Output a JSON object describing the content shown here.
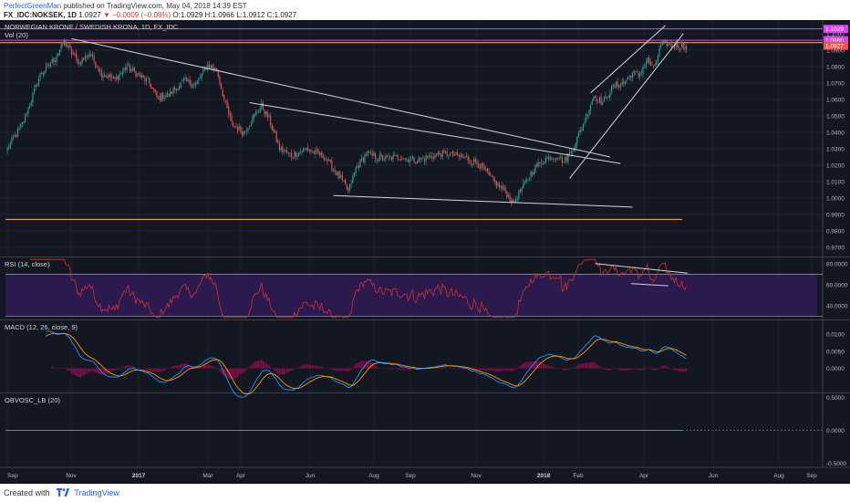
{
  "header": {
    "author": "PerfectGreenMan",
    "published": "published on TradingView.com, May 04, 2018 14:39 EST",
    "symbol": "FX_IDC:NOKSEK, 1D",
    "last": "1.0927",
    "change": "−0.0009 (−0.08%)",
    "ohlc": "O:1.0929 H:1.0966 L:1.0912 C:1.0927"
  },
  "footer": {
    "created_with": "Created with",
    "brand": "TradingView"
  },
  "colors": {
    "background": "#131722",
    "grid": "#262b38",
    "up_candle": "#26a69a",
    "down_candle": "#ef5350",
    "trendline": "#d1d4dc",
    "magenta_level": "#e040fb",
    "orange_level": "#ffb74d",
    "rsi_line": "#d32f2f",
    "rsi_band": "#2a1a4d",
    "macd_line": "#2196f3",
    "signal_line": "#ff9800",
    "histogram": "#880e4f",
    "obv_line": "#ef5350"
  },
  "chart_data": [
    {
      "type": "candlestick",
      "title": "NORWEGIAN KRONE / SWEDISH KRONA, 1D, FX_IDC",
      "subtitle": "Vol (20)",
      "x_ticks": [
        "Sep",
        "Nov",
        "2017",
        "Mar",
        "Apr",
        "Jun",
        "Aug",
        "Sep",
        "Nov",
        "2018",
        "Feb",
        "Apr",
        "Jun",
        "Aug",
        "Sep"
      ],
      "y_ticks": [
        "1.1000",
        "1.0900",
        "1.0800",
        "1.0700",
        "1.0600",
        "1.0500",
        "1.0400",
        "1.0300",
        "1.0200",
        "1.0100",
        "1.0000",
        "0.9900",
        "0.9800",
        "0.9700"
      ],
      "ylim": [
        0.965,
        1.1055
      ],
      "price_labels": [
        "1.1029",
        "1.0960",
        "1.0927"
      ],
      "close_path": [
        [
          0,
          1.03
        ],
        [
          10,
          1.045
        ],
        [
          22,
          1.075
        ],
        [
          32,
          1.085
        ],
        [
          38,
          1.095
        ],
        [
          48,
          1.082
        ],
        [
          55,
          1.088
        ],
        [
          63,
          1.076
        ],
        [
          72,
          1.072
        ],
        [
          80,
          1.08
        ],
        [
          95,
          1.07
        ],
        [
          100,
          1.061
        ],
        [
          108,
          1.063
        ],
        [
          118,
          1.071
        ],
        [
          126,
          1.069
        ],
        [
          134,
          1.081
        ],
        [
          140,
          1.078
        ],
        [
          145,
          1.06
        ],
        [
          150,
          1.045
        ],
        [
          158,
          1.04
        ],
        [
          165,
          1.05
        ],
        [
          170,
          1.056
        ],
        [
          175,
          1.048
        ],
        [
          182,
          1.03
        ],
        [
          190,
          1.026
        ],
        [
          200,
          1.03
        ],
        [
          212,
          1.025
        ],
        [
          222,
          1.013
        ],
        [
          228,
          1.004
        ],
        [
          233,
          1.018
        ],
        [
          240,
          1.027
        ],
        [
          250,
          1.024
        ],
        [
          262,
          1.025
        ],
        [
          275,
          1.023
        ],
        [
          290,
          1.027
        ],
        [
          305,
          1.025
        ],
        [
          315,
          1.021
        ],
        [
          325,
          1.01
        ],
        [
          333,
          1.004
        ],
        [
          338,
          0.997
        ],
        [
          345,
          1.007
        ],
        [
          352,
          1.018
        ],
        [
          360,
          1.024
        ],
        [
          368,
          1.026
        ],
        [
          372,
          1.022
        ],
        [
          378,
          1.03
        ],
        [
          385,
          1.045
        ],
        [
          392,
          1.062
        ],
        [
          398,
          1.058
        ],
        [
          405,
          1.068
        ],
        [
          412,
          1.07
        ],
        [
          418,
          1.076
        ],
        [
          422,
          1.075
        ],
        [
          428,
          1.084
        ],
        [
          432,
          1.078
        ],
        [
          437,
          1.093
        ],
        [
          441,
          1.094
        ],
        [
          444,
          1.0927
        ]
      ],
      "trendlines": [
        {
          "name": "descending resistance",
          "from": [
            43,
            1.097
          ],
          "to": [
            403,
            1.025
          ]
        },
        {
          "name": "wedge upper",
          "from": [
            162,
            1.058
          ],
          "to": [
            410,
            1.021
          ]
        },
        {
          "name": "wedge lower",
          "from": [
            218,
            1.0015
          ],
          "to": [
            418,
            0.9945
          ]
        },
        {
          "name": "channel upper",
          "from": [
            390,
            1.064
          ],
          "to": [
            440,
            1.105
          ]
        },
        {
          "name": "channel lower",
          "from": [
            376,
            1.012
          ],
          "to": [
            452,
            1.1
          ]
        }
      ],
      "levels": [
        {
          "value": 1.1029,
          "color": "magenta"
        },
        {
          "value": 1.096,
          "color": "magenta"
        },
        {
          "value": 1.0945,
          "color": "orange"
        },
        {
          "value": 0.987,
          "color": "orange"
        }
      ]
    },
    {
      "type": "line",
      "title": "RSI (14, close)",
      "y_ticks": [
        "80.0000",
        "60.0000",
        "40.0000"
      ],
      "ylim": [
        28,
        85
      ],
      "bands": [
        70,
        30
      ],
      "trendlines": [
        {
          "from": [
            393,
            80
          ],
          "to": [
            455,
            71
          ]
        },
        {
          "from": [
            417,
            61
          ],
          "to": [
            442,
            59
          ]
        }
      ]
    },
    {
      "type": "line",
      "title": "MACD (12, 26, close, 9)",
      "y_ticks": [
        "0.0100",
        "0.0050",
        "0.0000"
      ],
      "ylim": [
        -0.0068,
        0.0138
      ],
      "series": [
        {
          "name": "MACD"
        },
        {
          "name": "Signal"
        },
        {
          "name": "Histogram"
        }
      ]
    },
    {
      "type": "line",
      "title": "OBVOSC_LB (20)",
      "y_ticks": [
        "0.5000",
        "0.0000",
        "-0.5000"
      ],
      "ylim": [
        -0.55,
        0.55
      ],
      "values": [
        0
      ]
    }
  ]
}
